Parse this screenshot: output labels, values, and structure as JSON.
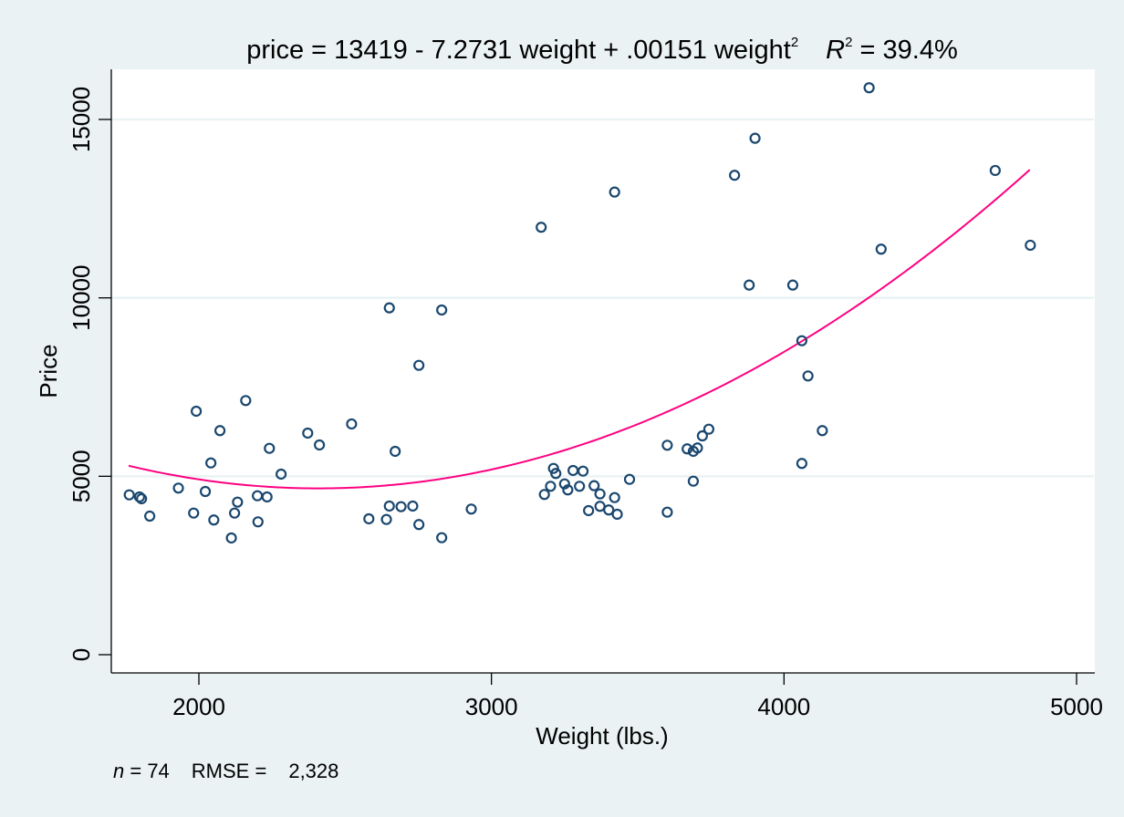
{
  "chart_data": {
    "type": "scatter",
    "title": {
      "prefix": "price = 13419 - 7.2731 weight + .00151 weight",
      "sup1": "2",
      "r_label": "R",
      "sup2": "2",
      "suffix": " = 39.4%"
    },
    "xlabel": "Weight (lbs.)",
    "ylabel": "Price",
    "xlim": [
      1700,
      5060
    ],
    "ylim": [
      -500,
      16300
    ],
    "xticks": [
      2000,
      3000,
      4000,
      5000
    ],
    "yticks": [
      0,
      5000,
      10000,
      15000
    ],
    "xtick_labels": [
      "2000",
      "3000",
      "4000",
      "5000"
    ],
    "ytick_labels": [
      "0",
      "5000",
      "10000",
      "15000"
    ],
    "grid": "horizontal",
    "footnote": {
      "n_label": "n",
      "n_text": " = 74",
      "rmse_text": "RMSE =",
      "rmse_value": "2,328"
    },
    "fit": {
      "name": "Quadratic fit",
      "intercept": 13419,
      "b1": -7.2731,
      "b2": 0.00151,
      "x_range": [
        1760,
        4840
      ],
      "color": "#ff0080"
    },
    "marker_color": "#1a476f",
    "points": [
      [
        1762,
        4480
      ],
      [
        1797,
        4421
      ],
      [
        1804,
        4370
      ],
      [
        1832,
        3884
      ],
      [
        1930,
        4669
      ],
      [
        1991,
        6823
      ],
      [
        2072,
        6279
      ],
      [
        2041,
        5374
      ],
      [
        2022,
        4574
      ],
      [
        1982,
        3969
      ],
      [
        2051,
        3775
      ],
      [
        2122,
        3969
      ],
      [
        2132,
        4276
      ],
      [
        2111,
        3271
      ],
      [
        2160,
        7122
      ],
      [
        2241,
        5783
      ],
      [
        2281,
        5060
      ],
      [
        2200,
        4454
      ],
      [
        2233,
        4421
      ],
      [
        2202,
        3723
      ],
      [
        2651,
        9719
      ],
      [
        2830,
        9660
      ],
      [
        2752,
        8109
      ],
      [
        2522,
        6466
      ],
      [
        2372,
        6210
      ],
      [
        2412,
        5878
      ],
      [
        2671,
        5699
      ],
      [
        2581,
        3808
      ],
      [
        2641,
        3790
      ],
      [
        2651,
        4166
      ],
      [
        2691,
        4148
      ],
      [
        2731,
        4166
      ],
      [
        2752,
        3647
      ],
      [
        2830,
        3279
      ],
      [
        2931,
        4081
      ],
      [
        3212,
        5221
      ],
      [
        3220,
        5078
      ],
      [
        3202,
        4720
      ],
      [
        3181,
        4490
      ],
      [
        3279,
        5162
      ],
      [
        3313,
        5144
      ],
      [
        3250,
        4787
      ],
      [
        3261,
        4618
      ],
      [
        3301,
        4720
      ],
      [
        3351,
        4736
      ],
      [
        3371,
        4506
      ],
      [
        3421,
        4403
      ],
      [
        3332,
        4038
      ],
      [
        3371,
        4158
      ],
      [
        3401,
        4056
      ],
      [
        3430,
        3936
      ],
      [
        3472,
        4914
      ],
      [
        3170,
        11978
      ],
      [
        3421,
        12965
      ],
      [
        3601,
        5870
      ],
      [
        3669,
        5768
      ],
      [
        3690,
        5699
      ],
      [
        3704,
        5794
      ],
      [
        3721,
        6133
      ],
      [
        3743,
        6320
      ],
      [
        3690,
        4863
      ],
      [
        3601,
        3994
      ],
      [
        4291,
        15888
      ],
      [
        3901,
        14472
      ],
      [
        3831,
        13435
      ],
      [
        4332,
        11365
      ],
      [
        3881,
        10358
      ],
      [
        4030,
        10358
      ],
      [
        4061,
        8799
      ],
      [
        4082,
        7812
      ],
      [
        4131,
        6279
      ],
      [
        4061,
        5359
      ],
      [
        4722,
        13570
      ],
      [
        4842,
        11475
      ]
    ]
  }
}
